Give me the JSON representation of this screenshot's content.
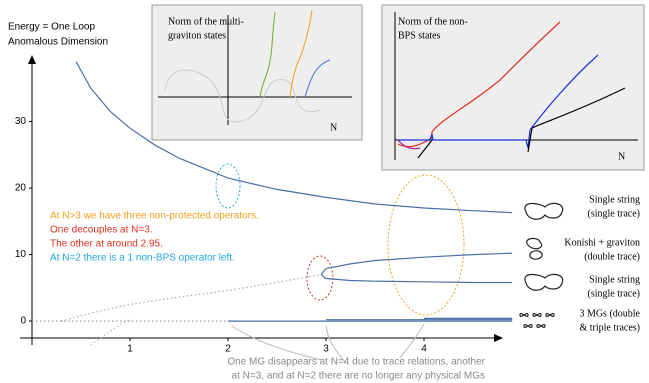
{
  "chart_data": {
    "type": "line",
    "ylabel": [
      "Energy = One Loop",
      "Anomalous Dimension"
    ],
    "xlim": [
      0,
      4.8
    ],
    "ylim": [
      -3.6,
      39
    ],
    "xticks": [
      1,
      2,
      3,
      4
    ],
    "yticks": [
      0,
      10,
      20,
      30
    ],
    "series": [
      {
        "color": "#4a6fa5",
        "dash": false,
        "x": [
          0.45,
          0.6,
          0.8,
          1,
          1.25,
          1.5,
          2,
          2.5,
          3,
          3.5,
          4,
          4.5,
          4.9
        ],
        "values": [
          39,
          35,
          31.5,
          29,
          26.5,
          24.5,
          21.5,
          19.8,
          18.6,
          17.6,
          17,
          16.6,
          16.3
        ]
      },
      {
        "color": "#4a6fa5",
        "dash": false,
        "x": [
          2.95,
          3,
          3.25,
          3.5,
          4,
          4.5,
          4.9
        ],
        "values": [
          7,
          7.9,
          8.6,
          9.1,
          9.6,
          10,
          10.2
        ]
      },
      {
        "color": "#4a6fa5",
        "dash": false,
        "x": [
          2.95,
          3,
          3.25,
          3.5,
          4,
          4.5,
          4.9
        ],
        "values": [
          7,
          6.4,
          6.1,
          6,
          5.9,
          5.8,
          5.8
        ]
      },
      {
        "color": "#aaaaaa",
        "dash": true,
        "x": [
          0.3,
          0.6,
          1,
          1.5,
          2,
          2.5,
          2.95
        ],
        "values": [
          0,
          1.2,
          2.5,
          3.6,
          4.6,
          5.8,
          7
        ]
      },
      {
        "color": "#999999",
        "dash": true,
        "x": [
          0,
          0.6,
          1.2,
          1.8,
          2
        ],
        "values": [
          0,
          0,
          0,
          0,
          0
        ]
      },
      {
        "color": "#bbbbbb",
        "dash": true,
        "x": [
          0.6,
          0.75,
          0.9,
          1
        ],
        "values": [
          -3.6,
          -2,
          -0.5,
          0.3
        ]
      },
      {
        "color": "#4a6fa5",
        "dash": false,
        "x": [
          2,
          4.9
        ],
        "values": [
          0,
          0
        ]
      },
      {
        "color": "#4a6fa5",
        "dash": false,
        "x": [
          3,
          4.9
        ],
        "values": [
          0.2,
          0.2
        ]
      },
      {
        "color": "#4a6fa5",
        "dash": false,
        "x": [
          4,
          4.9
        ],
        "values": [
          0.4,
          0.4
        ]
      }
    ],
    "annotations": [
      {
        "text": "At N>3 we have three non-protected operators.",
        "color": "#f0a020"
      },
      {
        "text": "One decouples at N=3.",
        "color": "#e03020"
      },
      {
        "text": "The other at around 2.95.",
        "color": "#e03020"
      },
      {
        "text": "At N=2 there is a 1 non-BPS operator left.",
        "color": "#20a8e0"
      }
    ],
    "right_labels": [
      [
        "Single string",
        "(single trace)"
      ],
      [
        "Konishi + graviton",
        "(double trace)"
      ],
      [
        "Single string",
        "(single trace)"
      ],
      [
        "3 MGs (double",
        "& triple traces)"
      ]
    ],
    "footnote": [
      "One MG disappears at N=4 due to trace relations, another",
      "at N=3, and at N=2 there are no longer any physical MGs"
    ],
    "insets": [
      {
        "title": [
          "Norm of the multi-",
          "graviton states"
        ],
        "xlabel": "N"
      },
      {
        "title": [
          "Norm of the non-",
          "BPS states"
        ],
        "xlabel": "N"
      }
    ]
  }
}
